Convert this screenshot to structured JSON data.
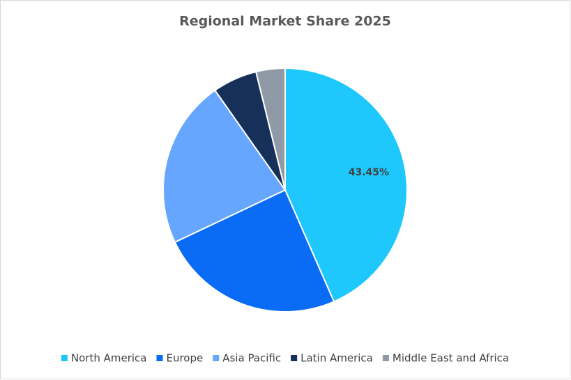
{
  "chart_data": {
    "type": "pie",
    "title": "Regional Market Share 2025",
    "categories": [
      "North America",
      "Europe",
      "Asia Pacific",
      "Latin America",
      "Middle East and Africa"
    ],
    "values": [
      43.45,
      24.5,
      22.3,
      5.9,
      3.85
    ],
    "value_labels": [
      "43.45%",
      null,
      null,
      null,
      null
    ],
    "colors": [
      "#1ec8fc",
      "#0a6cf5",
      "#66a6ff",
      "#17305a",
      "#9099a6"
    ],
    "legend": "bottom"
  }
}
